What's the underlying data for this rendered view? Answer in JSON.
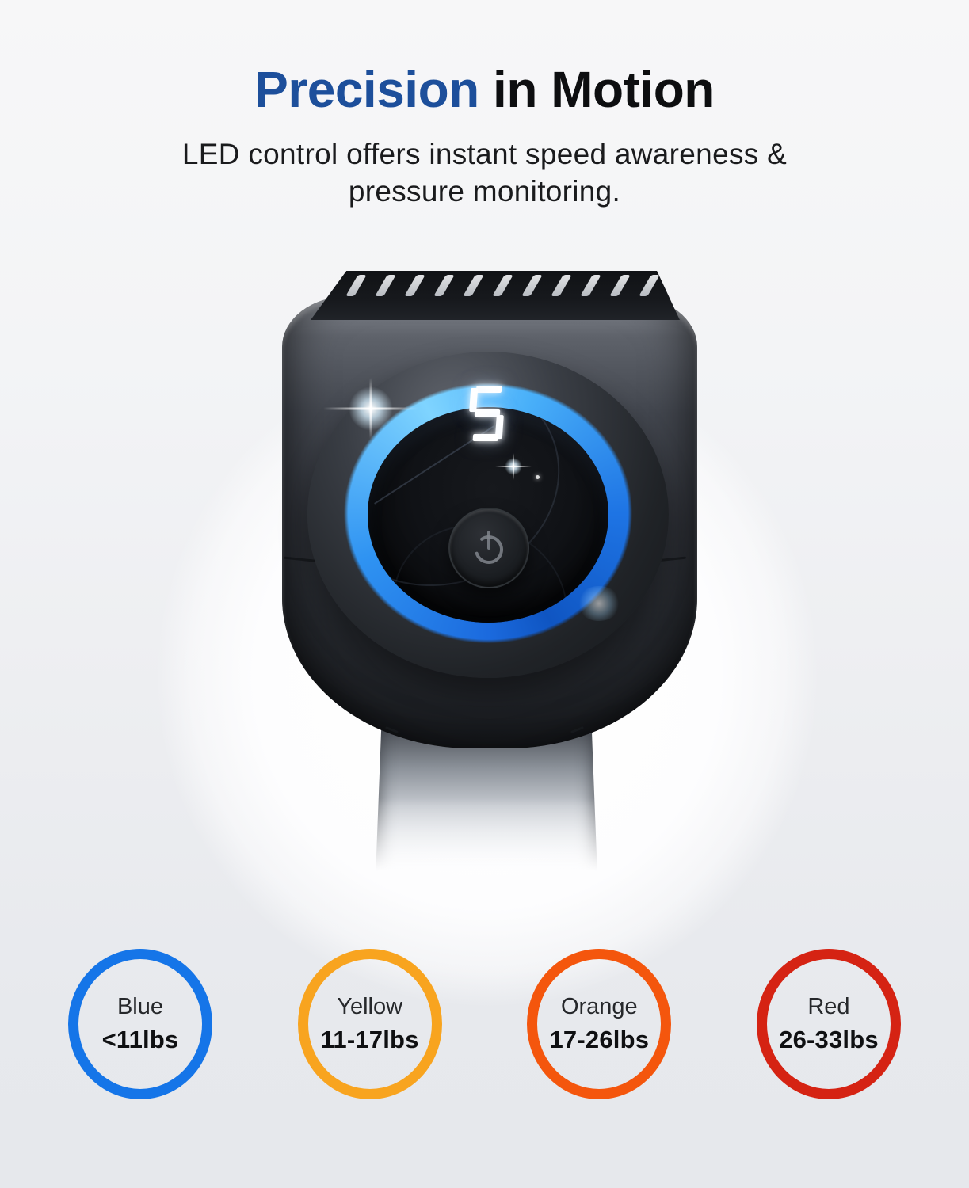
{
  "header": {
    "title_accent": "Precision",
    "title_rest": " in Motion",
    "subtitle_line1": "LED control offers instant speed awareness &",
    "subtitle_line2": "pressure monitoring."
  },
  "device": {
    "type": "massage-gun-head",
    "speed_level": "5",
    "led_ring_color": "#2f93f2",
    "vent_slot_count": 11
  },
  "pressure_levels": [
    {
      "label": "Blue",
      "range": "<11lbs",
      "color": "#1575e8"
    },
    {
      "label": "Yellow",
      "range": "11-17lbs",
      "color": "#f8a41f"
    },
    {
      "label": "Orange",
      "range": "17-26lbs",
      "color": "#f4560d"
    },
    {
      "label": "Red",
      "range": "26-33lbs",
      "color": "#d52313"
    }
  ]
}
